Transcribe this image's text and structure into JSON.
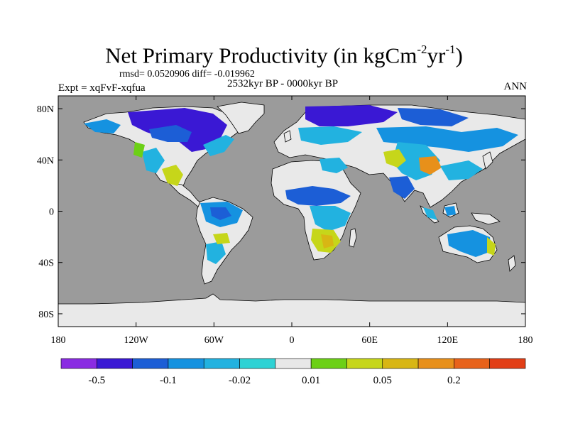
{
  "title": {
    "main": "Net Primary Productivity (in kgCm",
    "sup1": "-2",
    "mid": "yr",
    "sup2": "-1",
    "close": ")"
  },
  "stats": "rmsd= 0.0520906 diff= -0.019962",
  "period": "2532kyr BP - 0000kyr BP",
  "experiment": "Expt = xqFvF-xqfua",
  "season": "ANN",
  "axes": {
    "y_ticks": [
      {
        "label": "80N",
        "lat": 80
      },
      {
        "label": "40N",
        "lat": 40
      },
      {
        "label": "0",
        "lat": 0
      },
      {
        "label": "40S",
        "lat": -40
      },
      {
        "label": "80S",
        "lat": -80
      }
    ],
    "x_ticks": [
      {
        "label": "180",
        "lon": -180
      },
      {
        "label": "120W",
        "lon": -120
      },
      {
        "label": "60W",
        "lon": -60
      },
      {
        "label": "0",
        "lon": 0
      },
      {
        "label": "60E",
        "lon": 60
      },
      {
        "label": "120E",
        "lon": 120
      },
      {
        "label": "180",
        "lon": 180
      }
    ]
  },
  "colorbar": {
    "colors": [
      "#8a2be2",
      "#3a18d4",
      "#1c5ed6",
      "#1592e0",
      "#22b2e0",
      "#2ed2d4",
      "#e8e8e8",
      "#6cd016",
      "#c6d61a",
      "#d8b614",
      "#e8901a",
      "#e8621a",
      "#e23e16"
    ],
    "labels": [
      {
        "text": "-0.5",
        "boundary": 1
      },
      {
        "text": "-0.1",
        "boundary": 3
      },
      {
        "text": "-0.02",
        "boundary": 5
      },
      {
        "text": "0.01",
        "boundary": 7
      },
      {
        "text": "0.05",
        "boundary": 9
      },
      {
        "text": "0.2",
        "boundary": 11
      }
    ]
  },
  "colors": {
    "ocean": "#9b9b9b",
    "land_neutral": "#e9e9e9",
    "coast": "#000000"
  }
}
